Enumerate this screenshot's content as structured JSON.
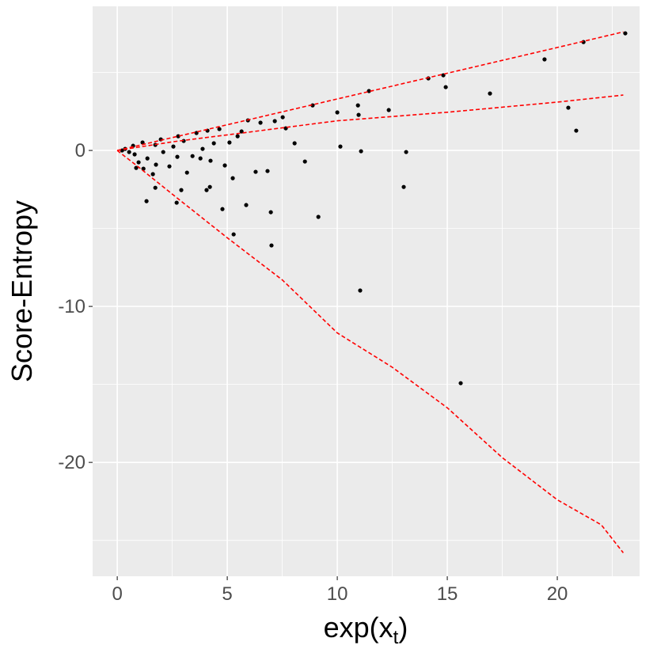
{
  "chart_data": {
    "type": "scatter",
    "x_label": {
      "text": "exp(x",
      "subscript": "t",
      "suffix": ")"
    },
    "y_label": "Score-Entropy",
    "x": [
      23.09,
      21.19,
      19.42,
      14.82,
      14.14,
      14.93,
      16.94,
      20.5,
      20.86,
      11.44,
      12.34,
      10.94,
      10.97,
      10.14,
      11.08,
      13.13,
      13.02,
      11.04,
      15.61,
      9.14,
      10.0,
      8.88,
      8.53,
      8.06,
      7.01,
      6.98,
      6.83,
      6.29,
      5.86,
      5.29,
      4.78,
      5.25,
      4.89,
      5.1,
      4.64,
      4.21,
      4.06,
      2.91,
      2.7,
      1.33,
      1.73,
      1.62,
      2.37,
      3.17,
      7.66,
      7.52,
      7.16,
      6.51,
      5.94,
      5.65,
      5.47,
      3.88,
      3.78,
      3.42,
      3.02,
      2.55,
      2.09,
      1.73,
      1.37,
      0.97,
      0.79,
      0.54,
      0.36,
      0.22,
      0.72,
      1.15,
      1.98,
      2.77,
      3.6,
      4.1,
      0.86,
      1.19,
      1.76,
      4.24,
      4.39,
      2.73
    ],
    "y": [
      7.51,
      6.95,
      5.84,
      4.82,
      4.62,
      4.06,
      3.65,
      2.74,
      1.27,
      3.81,
      2.59,
      2.89,
      2.28,
      0.25,
      -0.05,
      -0.1,
      -2.34,
      -8.98,
      -14.92,
      -4.26,
      2.44,
      2.89,
      -0.71,
      0.46,
      -6.09,
      -3.96,
      -1.32,
      -1.37,
      -3.5,
      -5.38,
      -3.76,
      -1.78,
      -0.96,
      0.51,
      1.37,
      -2.34,
      -2.54,
      -2.54,
      -3.35,
      -3.25,
      -2.39,
      -1.52,
      -1.02,
      -1.42,
      1.42,
      2.13,
      1.88,
      1.78,
      1.93,
      1.22,
      0.91,
      0.1,
      -0.51,
      -0.36,
      0.61,
      0.25,
      -0.1,
      0.36,
      -0.51,
      -0.76,
      -0.25,
      -0.1,
      0.1,
      0,
      0.3,
      0.51,
      0.71,
      0.91,
      1.12,
      1.27,
      -1.12,
      -1.17,
      -0.91,
      -0.66,
      0.46,
      -0.41
    ],
    "color": "#000000",
    "lines": [
      {
        "color": "#ff0000",
        "dashed": true,
        "x": [
          0,
          5,
          10,
          15,
          20,
          23
        ],
        "y": [
          0,
          1.65,
          3.3,
          4.95,
          6.6,
          7.6
        ]
      },
      {
        "color": "#ff0000",
        "dashed": true,
        "x": [
          0,
          2.5,
          5,
          10,
          15,
          20,
          23
        ],
        "y": [
          0,
          0.55,
          1.0,
          1.9,
          2.45,
          3.1,
          3.55
        ]
      },
      {
        "color": "#ff0000",
        "dashed": true,
        "x": [
          0,
          1,
          2.5,
          5,
          7.5,
          10,
          12.5,
          15,
          17.5,
          20,
          22,
          23
        ],
        "y": [
          0,
          -1.1,
          -2.8,
          -5.6,
          -8.3,
          -11.7,
          -13.9,
          -16.5,
          -19.7,
          -22.4,
          -24.0,
          -25.8
        ]
      }
    ],
    "xlim": [
      -1.12,
      23.74
    ],
    "ylim": [
      -27.3,
      9.24
    ],
    "xticks": [
      0,
      5,
      10,
      15,
      20
    ],
    "yticks": [
      0,
      -10,
      -20
    ],
    "x_minor_ticks": [
      2.5,
      7.5,
      12.5,
      17.5,
      22.5
    ],
    "y_minor_ticks": [
      5,
      -5,
      -15,
      -25
    ],
    "grid": true
  }
}
